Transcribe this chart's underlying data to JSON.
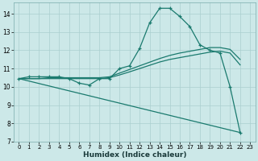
{
  "xlabel": "Humidex (Indice chaleur)",
  "bg_color": "#cce8e8",
  "grid_color": "#aacfcf",
  "line_color": "#1a7a6e",
  "xlim": [
    -0.5,
    23.5
  ],
  "ylim": [
    7,
    14.6
  ],
  "xticks": [
    0,
    1,
    2,
    3,
    4,
    5,
    6,
    7,
    8,
    9,
    10,
    11,
    12,
    13,
    14,
    15,
    16,
    17,
    18,
    19,
    20,
    21,
    22,
    23
  ],
  "yticks": [
    7,
    8,
    9,
    10,
    11,
    12,
    13,
    14
  ],
  "series": [
    {
      "x": [
        0,
        1,
        2,
        3,
        4,
        5,
        6,
        7,
        8,
        9,
        10,
        11,
        12,
        13,
        14,
        15,
        16,
        17,
        18,
        19,
        20,
        21,
        22
      ],
      "y": [
        10.45,
        10.55,
        10.55,
        10.55,
        10.55,
        10.45,
        10.2,
        10.1,
        10.45,
        10.45,
        11.0,
        11.15,
        12.1,
        13.5,
        14.3,
        14.3,
        13.85,
        13.3,
        12.3,
        12.0,
        11.85,
        10.0,
        7.5
      ],
      "marker": "+",
      "markersize": 3.5,
      "linewidth": 0.9,
      "linestyle": "-"
    },
    {
      "x": [
        0,
        1,
        2,
        3,
        4,
        5,
        6,
        7,
        8,
        9,
        10,
        11,
        12,
        13,
        14,
        15,
        16,
        17,
        18,
        19,
        20,
        21,
        22
      ],
      "y": [
        10.45,
        10.45,
        10.45,
        10.5,
        10.5,
        10.5,
        10.5,
        10.5,
        10.5,
        10.55,
        10.75,
        10.95,
        11.15,
        11.35,
        11.55,
        11.72,
        11.85,
        11.95,
        12.05,
        12.15,
        12.15,
        12.05,
        11.5
      ],
      "marker": null,
      "markersize": 0,
      "linewidth": 0.9,
      "linestyle": "-"
    },
    {
      "x": [
        0,
        1,
        2,
        3,
        4,
        5,
        6,
        7,
        8,
        9,
        10,
        11,
        12,
        13,
        14,
        15,
        16,
        17,
        18,
        19,
        20,
        21,
        22
      ],
      "y": [
        10.45,
        10.45,
        10.45,
        10.45,
        10.45,
        10.45,
        10.45,
        10.45,
        10.45,
        10.5,
        10.65,
        10.82,
        11.0,
        11.18,
        11.36,
        11.5,
        11.6,
        11.7,
        11.8,
        11.9,
        11.95,
        11.85,
        11.2
      ],
      "marker": null,
      "markersize": 0,
      "linewidth": 0.9,
      "linestyle": "-"
    },
    {
      "x": [
        0,
        22
      ],
      "y": [
        10.45,
        7.5
      ],
      "marker": null,
      "markersize": 0,
      "linewidth": 0.9,
      "linestyle": "-"
    }
  ]
}
